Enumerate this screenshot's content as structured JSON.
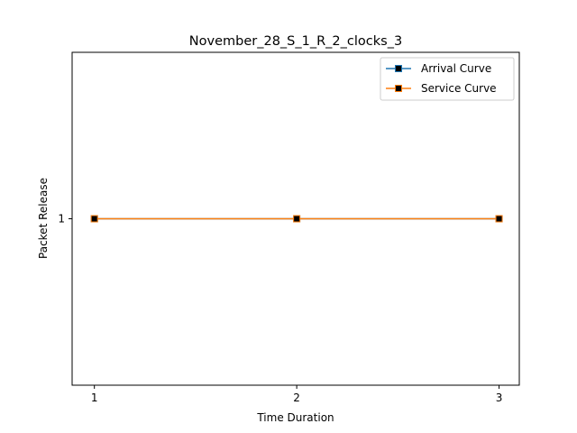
{
  "chart_data": {
    "type": "line",
    "title": "November_28_S_1_R_2_clocks_3",
    "xlabel": "Time Duration",
    "ylabel": "Packet Release",
    "x": [
      1,
      2,
      3
    ],
    "xticks": [
      "1",
      "2",
      "3"
    ],
    "yticks": [
      "1"
    ],
    "xlim": [
      0.89,
      3.1
    ],
    "ylim": [
      0,
      2
    ],
    "grid": false,
    "legend_position": "top-right",
    "series": [
      {
        "name": "Arrival Curve",
        "values": [
          1,
          1,
          1
        ],
        "color": "#1f77b4",
        "marker": "square",
        "marker_face": "#000000"
      },
      {
        "name": "Service Curve",
        "values": [
          1,
          1,
          1
        ],
        "color": "#ff7f0e",
        "marker": "square",
        "marker_face": "#000000"
      }
    ]
  }
}
